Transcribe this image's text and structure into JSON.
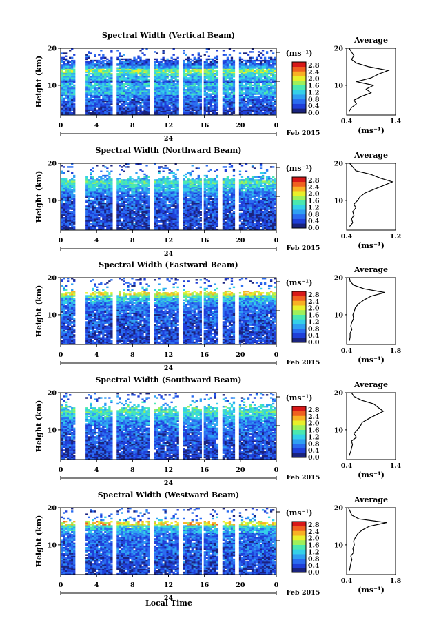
{
  "figure": {
    "xlabel_bottom": "Local Time",
    "date_label": "Feb 2015",
    "day_label": "24",
    "colorbar_unit": "(ms⁻¹)",
    "profile_title": "Average",
    "profile_xunit": "(ms⁻¹)",
    "colormap": [
      "#1a237e",
      "#1f3fd8",
      "#2a6cf0",
      "#2fa0f2",
      "#34d0e8",
      "#4ae8b0",
      "#9ef05a",
      "#e8ef2a",
      "#f8b024",
      "#f06020",
      "#d81818"
    ]
  },
  "chart_data": [
    {
      "type": "heatmap",
      "title": "Spectral Width (Vertical Beam)",
      "ylabel": "Height (km)",
      "x_ticks": [
        "0",
        "4",
        "8",
        "12",
        "16",
        "20",
        "0"
      ],
      "xlim": [
        0,
        24
      ],
      "y_ticks": [
        "20",
        "10"
      ],
      "ylim": [
        2,
        20
      ],
      "colorbar": {
        "ticks": [
          "2.8",
          "2.4",
          "2.0",
          "1.6",
          "1.2",
          "0.8",
          "0.4",
          "0.0"
        ],
        "range": [
          0.0,
          3.0
        ]
      },
      "data_gaps_hours": [
        [
          1.7,
          2.8
        ],
        [
          5.8,
          6.2
        ],
        [
          9.9,
          10.3
        ],
        [
          13.1,
          13.6
        ],
        [
          15.6,
          16.0
        ],
        [
          17.6,
          18.1
        ],
        [
          19.5,
          19.9
        ]
      ],
      "profile": {
        "xlim": [
          0.4,
          1.4
        ],
        "x_ticks": [
          "0.4",
          "1.4"
        ],
        "y_ticks": [
          "20",
          "10"
        ],
        "height_km": [
          3,
          4,
          5,
          6,
          7,
          8,
          9,
          10,
          11,
          12,
          13,
          14,
          15,
          16,
          17,
          18,
          19,
          20
        ],
        "width_ms": [
          0.45,
          0.5,
          0.6,
          0.55,
          0.7,
          0.9,
          0.8,
          0.95,
          0.6,
          0.9,
          1.05,
          1.25,
          0.85,
          0.6,
          0.5,
          0.55,
          0.5,
          0.45
        ]
      }
    },
    {
      "type": "heatmap",
      "title": "Spectral Width (Northward Beam)",
      "ylabel": "Height (km)",
      "x_ticks": [
        "0",
        "4",
        "8",
        "12",
        "16",
        "20",
        "0"
      ],
      "xlim": [
        0,
        24
      ],
      "y_ticks": [
        "20",
        "10"
      ],
      "ylim": [
        2,
        20
      ],
      "colorbar": {
        "ticks": [
          "2.8",
          "2.4",
          "2.0",
          "1.6",
          "1.2",
          "0.8",
          "0.4",
          "0.0"
        ],
        "range": [
          0.0,
          3.0
        ]
      },
      "data_gaps_hours": [
        [
          1.7,
          2.8
        ],
        [
          5.8,
          6.2
        ],
        [
          9.9,
          10.3
        ],
        [
          13.1,
          13.6
        ],
        [
          15.6,
          16.0
        ],
        [
          17.6,
          18.1
        ],
        [
          19.5,
          19.9
        ]
      ],
      "profile": {
        "xlim": [
          0.4,
          1.2
        ],
        "x_ticks": [
          "0.4",
          "1.2"
        ],
        "y_ticks": [
          "20",
          "10"
        ],
        "height_km": [
          3,
          4,
          5,
          6,
          7,
          8,
          9,
          10,
          11,
          12,
          13,
          14,
          15,
          16,
          17,
          18,
          19,
          20
        ],
        "width_ms": [
          0.45,
          0.5,
          0.48,
          0.52,
          0.5,
          0.55,
          0.52,
          0.58,
          0.62,
          0.7,
          0.85,
          1.0,
          1.15,
          0.95,
          0.8,
          0.55,
          0.5,
          0.45
        ]
      }
    },
    {
      "type": "heatmap",
      "title": "Spectral Width (Eastward Beam)",
      "ylabel": "Height (km)",
      "x_ticks": [
        "0",
        "4",
        "8",
        "12",
        "16",
        "20",
        "0"
      ],
      "xlim": [
        0,
        24
      ],
      "y_ticks": [
        "20",
        "10"
      ],
      "ylim": [
        2,
        20
      ],
      "colorbar": {
        "ticks": [
          "2.8",
          "2.4",
          "2.0",
          "1.6",
          "1.2",
          "0.8",
          "0.4",
          "0.0"
        ],
        "range": [
          0.0,
          3.0
        ]
      },
      "data_gaps_hours": [
        [
          1.7,
          2.8
        ],
        [
          5.8,
          6.2
        ],
        [
          9.9,
          10.3
        ],
        [
          13.1,
          13.6
        ],
        [
          15.6,
          16.0
        ],
        [
          17.6,
          18.1
        ],
        [
          19.5,
          19.9
        ]
      ],
      "profile": {
        "xlim": [
          0.4,
          1.8
        ],
        "x_ticks": [
          "0.4",
          "1.8"
        ],
        "y_ticks": [
          "20",
          "10"
        ],
        "height_km": [
          3,
          4,
          5,
          6,
          7,
          8,
          9,
          10,
          11,
          12,
          13,
          14,
          15,
          16,
          17,
          18,
          19,
          20
        ],
        "width_ms": [
          0.48,
          0.5,
          0.5,
          0.55,
          0.52,
          0.55,
          0.6,
          0.58,
          0.62,
          0.65,
          0.75,
          0.9,
          1.1,
          1.5,
          0.9,
          0.6,
          0.5,
          0.48
        ]
      }
    },
    {
      "type": "heatmap",
      "title": "Spectral Width (Southward Beam)",
      "ylabel": "Height (km)",
      "x_ticks": [
        "0",
        "4",
        "8",
        "12",
        "16",
        "20",
        "0"
      ],
      "xlim": [
        0,
        24
      ],
      "y_ticks": [
        "20",
        "10"
      ],
      "ylim": [
        2,
        20
      ],
      "colorbar": {
        "ticks": [
          "2.8",
          "2.4",
          "2.0",
          "1.6",
          "1.2",
          "0.8",
          "0.4",
          "0.0"
        ],
        "range": [
          0.0,
          3.0
        ]
      },
      "data_gaps_hours": [
        [
          1.7,
          2.8
        ],
        [
          5.8,
          6.2
        ],
        [
          9.9,
          10.3
        ],
        [
          13.1,
          13.6
        ],
        [
          15.6,
          16.0
        ],
        [
          17.6,
          18.1
        ],
        [
          19.5,
          19.9
        ]
      ],
      "profile": {
        "xlim": [
          0.4,
          1.4
        ],
        "x_ticks": [
          "0.4",
          "1.4"
        ],
        "y_ticks": [
          "20",
          "10"
        ],
        "height_km": [
          3,
          4,
          5,
          6,
          7,
          8,
          9,
          10,
          11,
          12,
          13,
          14,
          15,
          16,
          17,
          18,
          19,
          20
        ],
        "width_ms": [
          0.45,
          0.48,
          0.5,
          0.52,
          0.5,
          0.6,
          0.55,
          0.62,
          0.68,
          0.72,
          0.85,
          1.0,
          1.15,
          1.05,
          0.95,
          0.7,
          0.55,
          0.5
        ]
      }
    },
    {
      "type": "heatmap",
      "title": "Spectral Width (Westward Beam)",
      "ylabel": "Height (km)",
      "x_ticks": [
        "0",
        "4",
        "8",
        "12",
        "16",
        "20",
        "0"
      ],
      "xlim": [
        0,
        24
      ],
      "y_ticks": [
        "20",
        "10"
      ],
      "ylim": [
        2,
        20
      ],
      "colorbar": {
        "ticks": [
          "2.8",
          "2.4",
          "2.0",
          "1.6",
          "1.2",
          "0.8",
          "0.4",
          "0.0"
        ],
        "range": [
          0.0,
          3.0
        ]
      },
      "data_gaps_hours": [
        [
          1.7,
          2.8
        ],
        [
          5.8,
          6.2
        ],
        [
          9.9,
          10.3
        ],
        [
          13.1,
          13.6
        ],
        [
          15.6,
          16.0
        ],
        [
          17.6,
          18.1
        ],
        [
          19.5,
          19.9
        ]
      ],
      "profile": {
        "xlim": [
          0.4,
          1.8
        ],
        "x_ticks": [
          "0.4",
          "1.8"
        ],
        "y_ticks": [
          "20",
          "10"
        ],
        "height_km": [
          3,
          4,
          5,
          6,
          7,
          8,
          9,
          10,
          11,
          12,
          13,
          14,
          15,
          16,
          17,
          18,
          19,
          20
        ],
        "width_ms": [
          0.48,
          0.5,
          0.52,
          0.55,
          0.52,
          0.6,
          0.58,
          0.62,
          0.6,
          0.65,
          0.72,
          0.85,
          1.05,
          1.55,
          0.75,
          0.55,
          0.5,
          0.45
        ]
      }
    }
  ]
}
